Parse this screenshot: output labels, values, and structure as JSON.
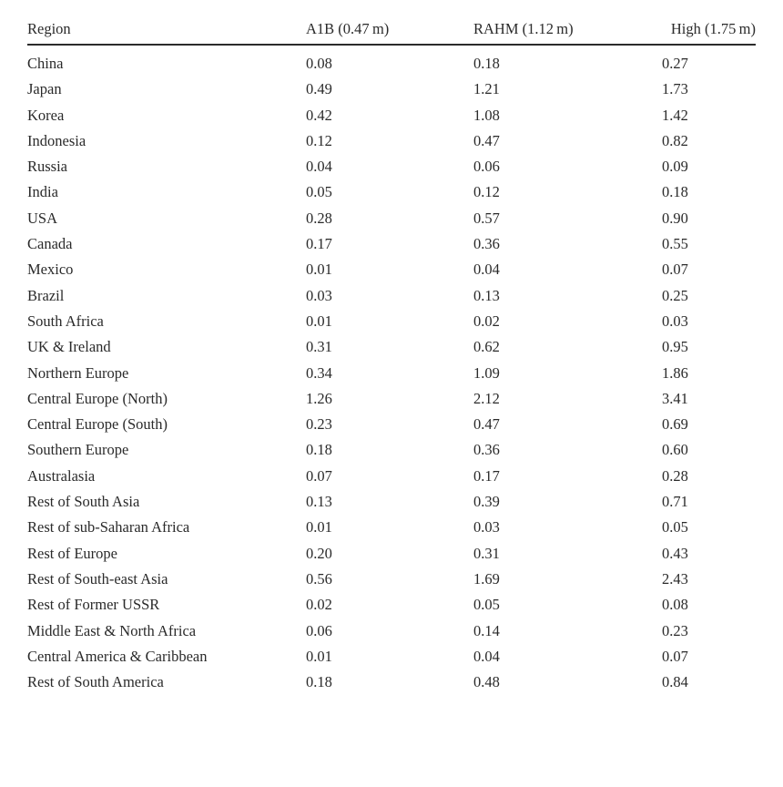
{
  "table": {
    "headers": [
      "Region",
      "A1B (0.47 m)",
      "RAHM (1.12 m)",
      "High (1.75 m)"
    ],
    "rows": [
      [
        "China",
        "0.08",
        "0.18",
        "0.27"
      ],
      [
        "Japan",
        "0.49",
        "1.21",
        "1.73"
      ],
      [
        "Korea",
        "0.42",
        "1.08",
        "1.42"
      ],
      [
        "Indonesia",
        "0.12",
        "0.47",
        "0.82"
      ],
      [
        "Russia",
        "0.04",
        "0.06",
        "0.09"
      ],
      [
        "India",
        "0.05",
        "0.12",
        "0.18"
      ],
      [
        "USA",
        "0.28",
        "0.57",
        "0.90"
      ],
      [
        "Canada",
        "0.17",
        "0.36",
        "0.55"
      ],
      [
        "Mexico",
        "0.01",
        "0.04",
        "0.07"
      ],
      [
        "Brazil",
        "0.03",
        "0.13",
        "0.25"
      ],
      [
        "South Africa",
        "0.01",
        "0.02",
        "0.03"
      ],
      [
        "UK & Ireland",
        "0.31",
        "0.62",
        "0.95"
      ],
      [
        "Northern Europe",
        "0.34",
        "1.09",
        "1.86"
      ],
      [
        "Central Europe (North)",
        "1.26",
        "2.12",
        "3.41"
      ],
      [
        "Central Europe (South)",
        "0.23",
        "0.47",
        "0.69"
      ],
      [
        "Southern Europe",
        "0.18",
        "0.36",
        "0.60"
      ],
      [
        "Australasia",
        "0.07",
        "0.17",
        "0.28"
      ],
      [
        "Rest of South Asia",
        "0.13",
        "0.39",
        "0.71"
      ],
      [
        "Rest of sub-Saharan Africa",
        "0.01",
        "0.03",
        "0.05"
      ],
      [
        "Rest of Europe",
        "0.20",
        "0.31",
        "0.43"
      ],
      [
        "Rest of South-east Asia",
        "0.56",
        "1.69",
        "2.43"
      ],
      [
        "Rest of Former USSR",
        "0.02",
        "0.05",
        "0.08"
      ],
      [
        "Middle East & North Africa",
        "0.06",
        "0.14",
        "0.23"
      ],
      [
        "Central America & Caribbean",
        "0.01",
        "0.04",
        "0.07"
      ],
      [
        "Rest of South America",
        "0.18",
        "0.48",
        "0.84"
      ]
    ]
  }
}
